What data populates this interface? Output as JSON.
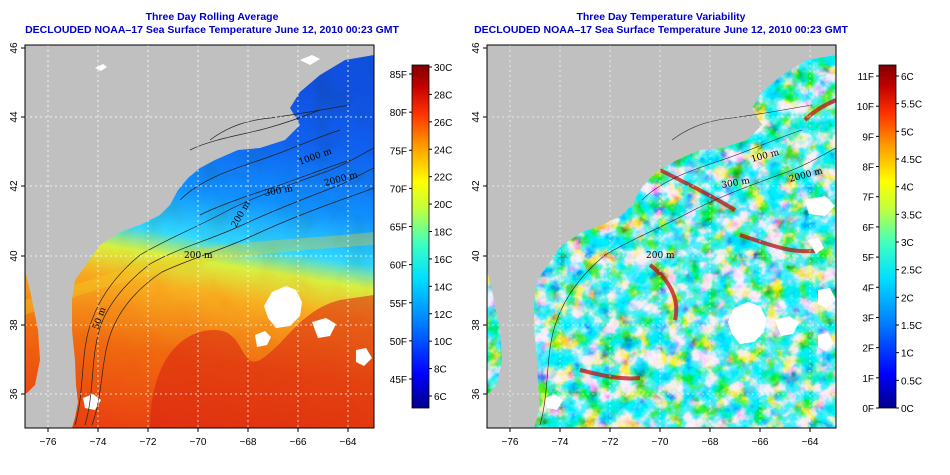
{
  "colors": {
    "land": "#c0c0c0",
    "title": "#0000cc",
    "grid": "#ffffff"
  },
  "panels": [
    {
      "title_line1": "Three Day Rolling Average",
      "title_line2": "DECLOUDED NOAA–17 Sea Surface Temperature June 12, 2010 00:23 GMT",
      "lat_ticks": [
        "36",
        "38",
        "40",
        "42",
        "44",
        "46"
      ],
      "lon_ticks": [
        "−76",
        "−74",
        "−72",
        "−70",
        "−68",
        "−66",
        "−64"
      ],
      "contour_labels": [
        "50 m",
        "200 m",
        "200 m",
        "300 m",
        "1000 m",
        "2000 m"
      ],
      "colorbar": {
        "left_labels": [
          "85F",
          "80F",
          "75F",
          "70F",
          "65F",
          "60F",
          "55F",
          "50F",
          "45F"
        ],
        "right_labels": [
          "30C",
          "28C",
          "26C",
          "24C",
          "22C",
          "20C",
          "18C",
          "16C",
          "14C",
          "12C",
          "10C",
          "8C",
          "6C"
        ],
        "range_c": [
          5,
          30
        ],
        "colorscale": [
          "#00008a",
          "#0000ff",
          "#0080ff",
          "#00e0ff",
          "#40ffc0",
          "#c0ff40",
          "#ffff00",
          "#ffa000",
          "#ff3000",
          "#c00000",
          "#800000"
        ]
      }
    },
    {
      "title_line1": "Three Day Temperature Variability",
      "title_line2": "DECLOUDED NOAA–17 Sea Surface Temperature June 12, 2010 00:23 GMT",
      "lat_ticks": [
        "36",
        "38",
        "40",
        "42",
        "44",
        "46"
      ],
      "lon_ticks": [
        "−76",
        "−74",
        "−72",
        "−70",
        "−68",
        "−66",
        "−64"
      ],
      "contour_labels": [
        "100 m",
        "300 m",
        "2000 m",
        "200 m"
      ],
      "colorbar": {
        "left_labels": [
          "11F",
          "10F",
          "9F",
          "8F",
          "7F",
          "6F",
          "5F",
          "4F",
          "3F",
          "2F",
          "1F",
          "0F"
        ],
        "right_labels": [
          "6C",
          "5.5C",
          "5C",
          "4.5C",
          "4C",
          "3.5C",
          "3C",
          "2.5C",
          "2C",
          "1.5C",
          "1C",
          "0.5C",
          "0C"
        ],
        "range_c": [
          0,
          6.4
        ],
        "colorscale": [
          "#00008a",
          "#0000ff",
          "#0080ff",
          "#00e0ff",
          "#40ffc0",
          "#c0ff40",
          "#ffff00",
          "#ffa000",
          "#ff3000",
          "#c00000",
          "#800000"
        ]
      }
    }
  ]
}
